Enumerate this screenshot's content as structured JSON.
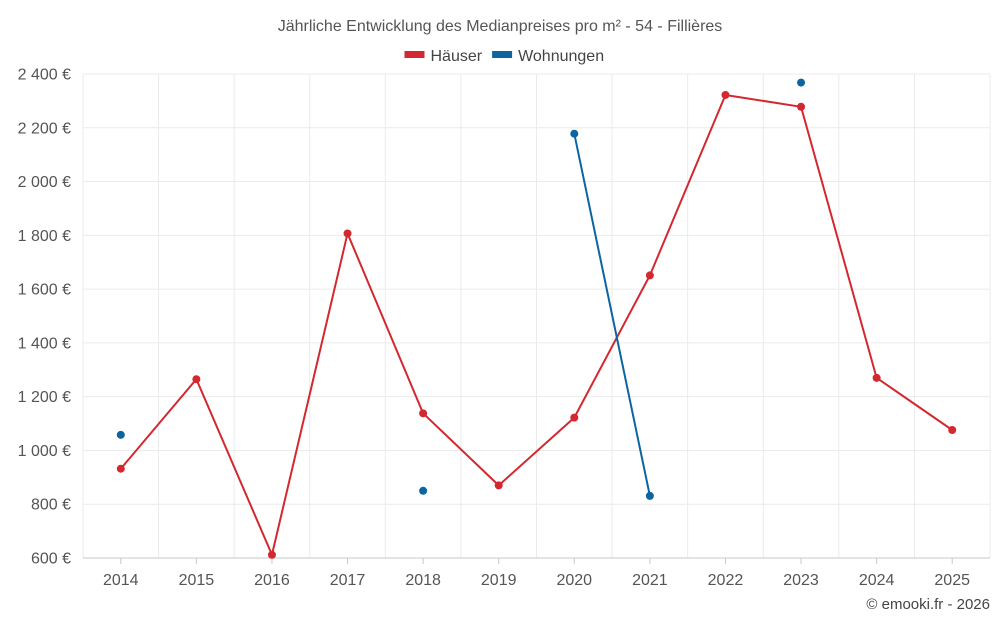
{
  "chart_data": {
    "type": "line",
    "title": "Jährliche Entwicklung des Medianpreises pro m² - 54 - Fillières",
    "categories": [
      "2014",
      "2015",
      "2016",
      "2017",
      "2018",
      "2019",
      "2020",
      "2021",
      "2022",
      "2023",
      "2024",
      "2025"
    ],
    "series": [
      {
        "name": "Häuser",
        "color": "#d3282f",
        "values": [
          932,
          1265,
          612,
          1807,
          1138,
          870,
          1122,
          1651,
          2322,
          2278,
          1270,
          1076
        ]
      },
      {
        "name": "Wohnungen",
        "color": "#0c64a0",
        "values": [
          1058,
          null,
          null,
          null,
          850,
          null,
          2178,
          831,
          null,
          2368,
          null,
          null
        ]
      }
    ],
    "ylim": [
      600,
      2400
    ],
    "yticks": [
      600,
      800,
      1000,
      1200,
      1400,
      1600,
      1800,
      2000,
      2200,
      2400
    ],
    "ytick_labels": [
      "600 €",
      "800 €",
      "1 000 €",
      "1 200 €",
      "1 400 €",
      "1 600 €",
      "1 800 €",
      "2 000 €",
      "2 200 €",
      "2 400 €"
    ],
    "xlabel": "",
    "ylabel": "",
    "grid": true,
    "legend_position": "top-center"
  },
  "credit": "© emooki.fr - 2026"
}
